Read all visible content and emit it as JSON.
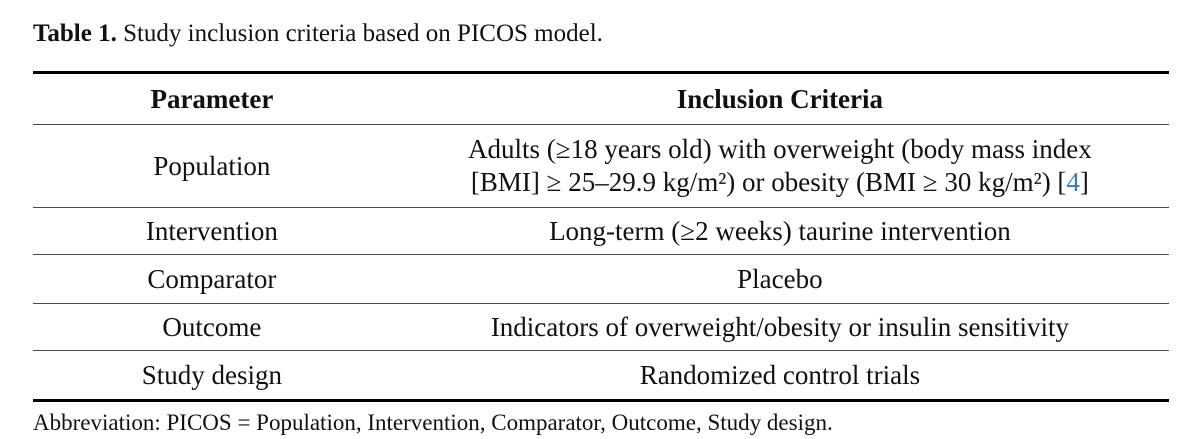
{
  "caption": {
    "label": "Table 1.",
    "text": " Study inclusion criteria based on PICOS model."
  },
  "table": {
    "headers": {
      "parameter": "Parameter",
      "criteria": "Inclusion Criteria"
    },
    "rows": [
      {
        "parameter": "Population",
        "criteria_line1": "Adults (≥18 years old) with overweight (body mass index",
        "criteria_line2": "[BMI] ≥ 25–29.9 kg/m²) or obesity (BMI ≥ 30 kg/m²) [",
        "citation": "4",
        "criteria_line2_end": "]"
      },
      {
        "parameter": "Intervention",
        "criteria": "Long-term (≥2 weeks) taurine intervention"
      },
      {
        "parameter": "Comparator",
        "criteria": "Placebo"
      },
      {
        "parameter": "Outcome",
        "criteria": "Indicators of overweight/obesity or insulin sensitivity"
      },
      {
        "parameter": "Study design",
        "criteria": "Randomized control trials"
      }
    ]
  },
  "footnote": "Abbreviation: PICOS = Population, Intervention, Comparator, Outcome, Study design.",
  "colors": {
    "citation_blue": "#3b7ab8",
    "text": "#111111",
    "rule_heavy": "#000000",
    "rule_light": "#4a4a4a"
  }
}
